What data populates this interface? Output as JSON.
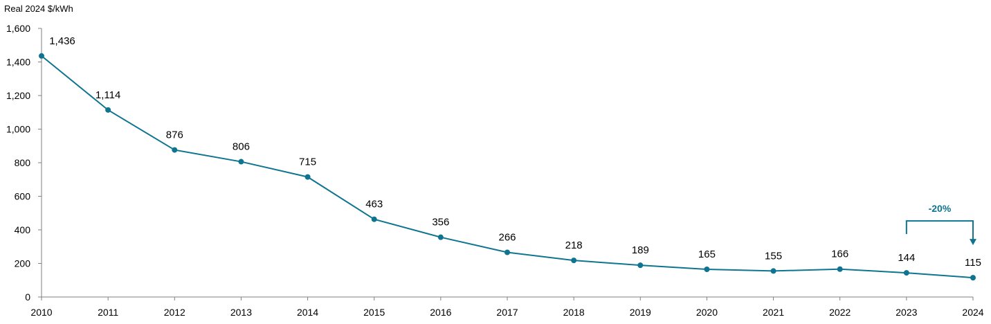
{
  "chart_data": {
    "type": "line",
    "unit_label": "Real 2024 $/kWh",
    "x": [
      "2010",
      "2011",
      "2012",
      "2013",
      "2014",
      "2015",
      "2016",
      "2017",
      "2018",
      "2019",
      "2020",
      "2021",
      "2022",
      "2023",
      "2024"
    ],
    "series": [
      {
        "values": [
          1436,
          1114,
          876,
          806,
          715,
          463,
          356,
          266,
          218,
          189,
          165,
          155,
          166,
          144,
          115
        ],
        "data_labels": [
          "1,436",
          "1,114",
          "876",
          "806",
          "715",
          "463",
          "356",
          "266",
          "218",
          "189",
          "165",
          "155",
          "166",
          "144",
          "115"
        ]
      }
    ],
    "ylim": [
      0,
      1600
    ],
    "yticks": [
      0,
      200,
      400,
      600,
      800,
      1000,
      1200,
      1400,
      1600
    ],
    "ytick_labels": [
      "0",
      "200",
      "400",
      "600",
      "800",
      "1,000",
      "1,200",
      "1,400",
      "1,600"
    ],
    "grid": false,
    "line_color": "#0e7490",
    "annotation": {
      "text": "-20%",
      "from": "2023",
      "to": "2024",
      "color": "#0e7490"
    }
  }
}
